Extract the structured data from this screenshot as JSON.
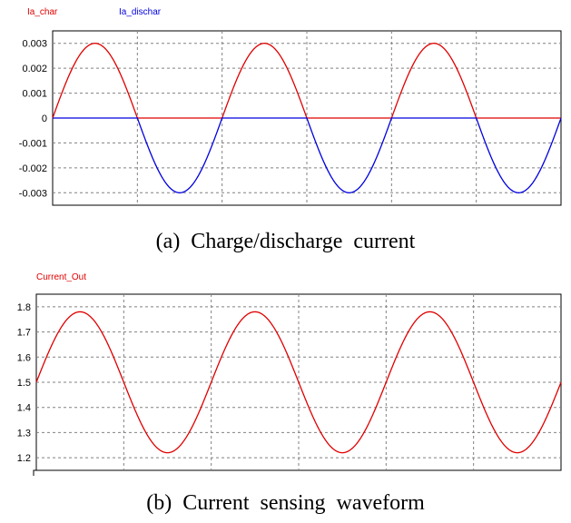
{
  "colors": {
    "red": "#e00000",
    "blue": "#0000e0",
    "grid": "#808080"
  },
  "captions": {
    "a": "(a)  Charge/discharge  current",
    "b": "(b)  Current  sensing  waveform"
  },
  "chart_data": [
    {
      "type": "line",
      "title": "",
      "legend": "top-left",
      "grid": true,
      "ylim": [
        -0.0035,
        0.0035
      ],
      "yticks": [
        "0.003",
        "0.002",
        "0.001",
        "0",
        "-0.001",
        "-0.002",
        "-0.003"
      ],
      "ytick_values": [
        0.003,
        0.002,
        0.001,
        0,
        -0.001,
        -0.002,
        -0.003
      ],
      "xlim": [
        0,
        3
      ],
      "series": [
        {
          "name": "Ia_char",
          "color": "#e00000",
          "shape": "positive-half-sine",
          "amplitude": 0.003,
          "cycles": 3
        },
        {
          "name": "Ia_dischar",
          "color": "#0000e0",
          "shape": "negative-half-sine",
          "amplitude": 0.003,
          "cycles": 3
        }
      ]
    },
    {
      "type": "line",
      "title": "",
      "legend": "top-left",
      "grid": true,
      "ylim": [
        1.15,
        1.85
      ],
      "yticks": [
        "1.8",
        "1.7",
        "1.6",
        "1.5",
        "1.4",
        "1.3",
        "1.2"
      ],
      "ytick_values": [
        1.8,
        1.7,
        1.6,
        1.5,
        1.4,
        1.3,
        1.2
      ],
      "xlim": [
        0,
        3
      ],
      "series": [
        {
          "name": "Current_Out",
          "color": "#e00000",
          "shape": "sine",
          "offset": 1.5,
          "amplitude": 0.28,
          "cycles": 3
        }
      ]
    }
  ]
}
